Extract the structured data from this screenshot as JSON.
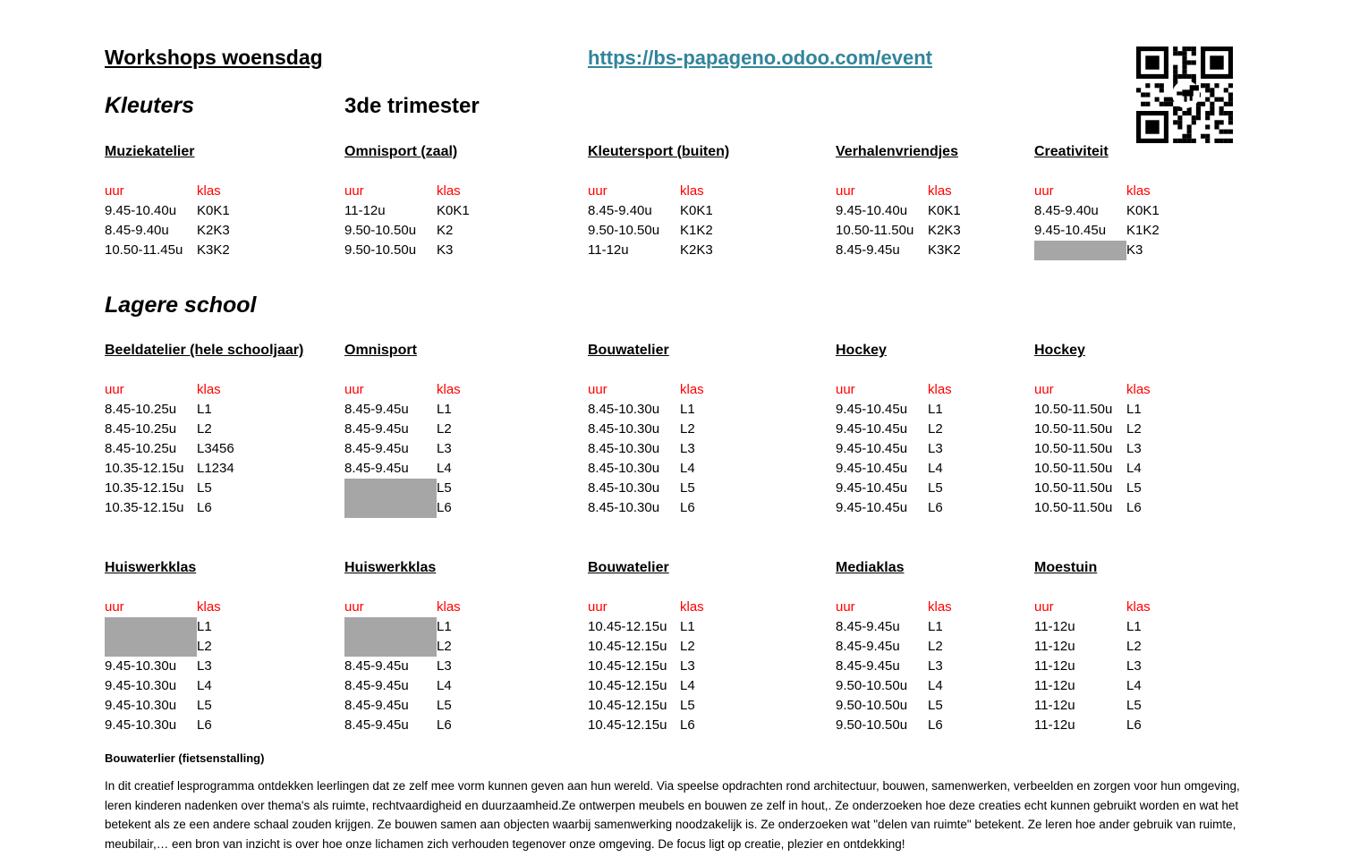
{
  "page": {
    "title": "Workshops woensdag",
    "link": "https://bs-papageno.odoo.com/event"
  },
  "icons": {
    "qr": "qr-code-with-dino"
  },
  "colors": {
    "header_red": "#FF0000",
    "link_teal": "#31849B",
    "gray_cell": "#A6A6A6"
  },
  "labels": {
    "uur": "uur",
    "klas": "klas"
  },
  "sections": {
    "kleuters": {
      "heading": "Kleuters",
      "subheading": "3de trimester"
    },
    "lagere": {
      "heading": "Lagere school"
    }
  },
  "kleuters_blocks": [
    {
      "title": "Muziekatelier",
      "rows": [
        {
          "uur": "9.45-10.40u",
          "klas": "K0K1"
        },
        {
          "uur": "8.45-9.40u",
          "klas": "K2K3"
        },
        {
          "uur": "10.50-11.45u",
          "klas": "K3K2"
        }
      ]
    },
    {
      "title": "Omnisport (zaal)",
      "rows": [
        {
          "uur": "11-12u",
          "klas": "K0K1"
        },
        {
          "uur": "9.50-10.50u",
          "klas": "K2"
        },
        {
          "uur": "9.50-10.50u",
          "klas": "K3"
        }
      ]
    },
    {
      "title": "Kleutersport (buiten)",
      "rows": [
        {
          "uur": "8.45-9.40u",
          "klas": "K0K1"
        },
        {
          "uur": "9.50-10.50u",
          "klas": "K1K2"
        },
        {
          "uur": "11-12u",
          "klas": "K2K3"
        }
      ]
    },
    {
      "title": "Verhalenvriendjes",
      "rows": [
        {
          "uur": "9.45-10.40u",
          "klas": "K0K1"
        },
        {
          "uur": "10.50-11.50u",
          "klas": "K2K3"
        },
        {
          "uur": "8.45-9.45u",
          "klas": "K3K2"
        }
      ]
    },
    {
      "title": "Creativiteit",
      "rows": [
        {
          "uur": "8.45-9.40u",
          "klas": "K0K1"
        },
        {
          "uur": "9.45-10.45u",
          "klas": "K1K2"
        },
        {
          "uur": null,
          "gray": true,
          "klas": "K3"
        }
      ]
    }
  ],
  "lagere_blocks": [
    {
      "title": "Beeldatelier (hele schooljaar)",
      "rows": [
        {
          "uur": "8.45-10.25u",
          "klas": "L1"
        },
        {
          "uur": "8.45-10.25u",
          "klas": "L2"
        },
        {
          "uur": "8.45-10.25u",
          "klas": "L3456"
        },
        {
          "uur": "10.35-12.15u",
          "klas": "L1234"
        },
        {
          "uur": "10.35-12.15u",
          "klas": "L5"
        },
        {
          "uur": "10.35-12.15u",
          "klas": "L6"
        }
      ]
    },
    {
      "title": "Omnisport",
      "rows": [
        {
          "uur": "8.45-9.45u",
          "klas": "L1"
        },
        {
          "uur": "8.45-9.45u",
          "klas": "L2"
        },
        {
          "uur": "8.45-9.45u",
          "klas": "L3"
        },
        {
          "uur": "8.45-9.45u",
          "klas": "L4"
        },
        {
          "uur": null,
          "gray": true,
          "klas": "L5"
        },
        {
          "uur": null,
          "gray": true,
          "klas": "L6"
        }
      ]
    },
    {
      "title": "Bouwatelier",
      "rows": [
        {
          "uur": "8.45-10.30u",
          "klas": "L1"
        },
        {
          "uur": "8.45-10.30u",
          "klas": "L2"
        },
        {
          "uur": "8.45-10.30u",
          "klas": "L3"
        },
        {
          "uur": "8.45-10.30u",
          "klas": "L4"
        },
        {
          "uur": "8.45-10.30u",
          "klas": "L5"
        },
        {
          "uur": "8.45-10.30u",
          "klas": "L6"
        }
      ]
    },
    {
      "title": "Hockey",
      "rows": [
        {
          "uur": "9.45-10.45u",
          "klas": "L1"
        },
        {
          "uur": "9.45-10.45u",
          "klas": "L2"
        },
        {
          "uur": "9.45-10.45u",
          "klas": "L3"
        },
        {
          "uur": "9.45-10.45u",
          "klas": "L4"
        },
        {
          "uur": "9.45-10.45u",
          "klas": "L5"
        },
        {
          "uur": "9.45-10.45u",
          "klas": "L6"
        }
      ]
    },
    {
      "title": "Hockey",
      "rows": [
        {
          "uur": "10.50-11.50u",
          "klas": "L1"
        },
        {
          "uur": "10.50-11.50u",
          "klas": "L2"
        },
        {
          "uur": "10.50-11.50u",
          "klas": "L3"
        },
        {
          "uur": "10.50-11.50u",
          "klas": "L4"
        },
        {
          "uur": "10.50-11.50u",
          "klas": "L5"
        },
        {
          "uur": "10.50-11.50u",
          "klas": "L6"
        }
      ]
    },
    {
      "title": "Huiswerkklas",
      "rows": [
        {
          "uur": null,
          "gray": true,
          "klas": "L1"
        },
        {
          "uur": null,
          "gray": true,
          "klas": "L2"
        },
        {
          "uur": "9.45-10.30u",
          "klas": "L3"
        },
        {
          "uur": "9.45-10.30u",
          "klas": "L4"
        },
        {
          "uur": "9.45-10.30u",
          "klas": "L5"
        },
        {
          "uur": "9.45-10.30u",
          "klas": "L6"
        }
      ]
    },
    {
      "title": "Huiswerkklas",
      "rows": [
        {
          "uur": null,
          "gray": true,
          "klas": "L1"
        },
        {
          "uur": null,
          "gray": true,
          "klas": "L2"
        },
        {
          "uur": "8.45-9.45u",
          "klas": "L3"
        },
        {
          "uur": "8.45-9.45u",
          "klas": "L4"
        },
        {
          "uur": "8.45-9.45u",
          "klas": "L5"
        },
        {
          "uur": "8.45-9.45u",
          "klas": "L6"
        }
      ]
    },
    {
      "title": "Bouwatelier",
      "rows": [
        {
          "uur": "10.45-12.15u",
          "klas": "L1"
        },
        {
          "uur": "10.45-12.15u",
          "klas": "L2"
        },
        {
          "uur": "10.45-12.15u",
          "klas": "L3"
        },
        {
          "uur": "10.45-12.15u",
          "klas": "L4"
        },
        {
          "uur": "10.45-12.15u",
          "klas": "L5"
        },
        {
          "uur": "10.45-12.15u",
          "klas": "L6"
        }
      ]
    },
    {
      "title": "Mediaklas",
      "rows": [
        {
          "uur": "8.45-9.45u",
          "klas": "L1"
        },
        {
          "uur": "8.45-9.45u",
          "klas": "L2"
        },
        {
          "uur": "8.45-9.45u",
          "klas": "L3"
        },
        {
          "uur": "9.50-10.50u",
          "klas": "L4"
        },
        {
          "uur": "9.50-10.50u",
          "klas": "L5"
        },
        {
          "uur": "9.50-10.50u",
          "klas": "L6"
        }
      ]
    },
    {
      "title": "Moestuin",
      "rows": [
        {
          "uur": "11-12u",
          "klas": "L1"
        },
        {
          "uur": "11-12u",
          "klas": "L2"
        },
        {
          "uur": "11-12u",
          "klas": "L3"
        },
        {
          "uur": "11-12u",
          "klas": "L4"
        },
        {
          "uur": "11-12u",
          "klas": "L5"
        },
        {
          "uur": "11-12u",
          "klas": "L6"
        }
      ]
    }
  ],
  "footer": {
    "heading": "Bouwaterlier (fietsenstalling)",
    "text": "In dit creatief lesprogramma ontdekken leerlingen dat ze zelf mee vorm kunnen geven aan hun wereld. Via speelse opdrachten rond architectuur, bouwen, samenwerken, verbeelden en zorgen voor hun omgeving, leren kinderen nadenken over thema's als ruimte, rechtvaardigheid en duurzaamheid.Ze ontwerpen meubels en bouwen ze zelf in hout,. Ze onderzoeken hoe deze creaties echt kunnen gebruikt worden en wat het betekent als ze een andere schaal zouden krijgen. Ze bouwen samen aan objecten waarbij samenwerking noodzakelijk is. Ze onderzoeken wat \"delen van ruimte\" betekent. Ze leren hoe ander gebruik van ruimte, meubilair,… een bron van  inzicht is over hoe onze lichamen zich verhouden tegenover onze omgeving. De focus ligt op creatie, plezier en ontdekking!"
  }
}
